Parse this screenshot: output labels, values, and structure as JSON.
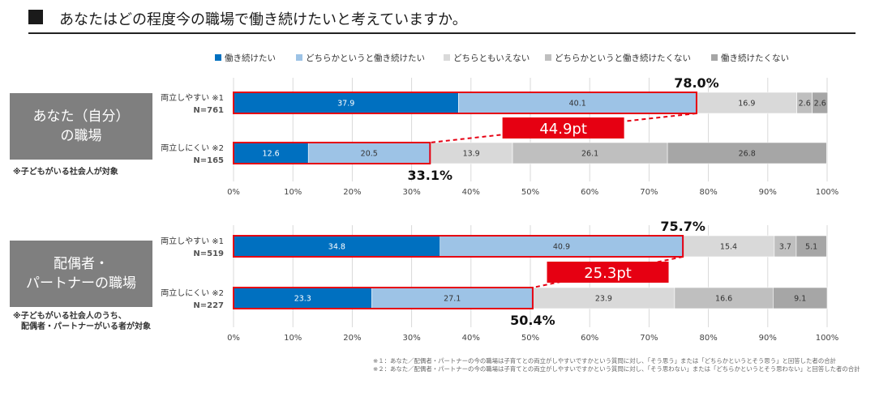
{
  "title": "あなたはどの程度今の職場で働き続けたいと考えていますか。",
  "legend": [
    {
      "label": "働き続けたい",
      "color": "#0070C0"
    },
    {
      "label": "どちらかというと働き続けたい",
      "color": "#9DC3E6"
    },
    {
      "label": "どちらともいえない",
      "color": "#D9D9D9"
    },
    {
      "label": "どちらかというと働き続けたくない",
      "color": "#BFBFBF"
    },
    {
      "label": "働き続けたくない",
      "color": "#A6A6A6"
    }
  ],
  "panels": [
    {
      "side_label": "あなた（自分）\nの職場",
      "note": "※子どもがいる社会人が対象",
      "top_total": "78.0%",
      "bottom_total": "33.1%",
      "diff": "44.9pt"
    },
    {
      "side_label": "配偶者・\nパートナーの職場",
      "note": "※子どもがいる社会人のうち、\n　配偶者・パートナーがいる者が対象",
      "top_total": "75.7%",
      "bottom_total": "50.4%",
      "diff": "25.3pt"
    }
  ],
  "chart_data": [
    {
      "type": "bar",
      "stacked": true,
      "orientation": "horizontal",
      "categories": [
        "両立しやすい ※1\nN=761",
        "両立しにくい ※2\nN=165"
      ],
      "series": [
        {
          "name": "働き続けたい",
          "values": [
            37.9,
            12.6
          ]
        },
        {
          "name": "どちらかというと働き続けたい",
          "values": [
            40.1,
            20.5
          ]
        },
        {
          "name": "どちらともいえない",
          "values": [
            16.9,
            13.9
          ]
        },
        {
          "name": "どちらかというと働き続けたくない",
          "values": [
            2.6,
            26.1
          ]
        },
        {
          "name": "働き続けたくない",
          "values": [
            2.6,
            26.8
          ]
        }
      ],
      "xlim": [
        0,
        100
      ],
      "xticks": [
        "0%",
        "10%",
        "20%",
        "30%",
        "40%",
        "50%",
        "60%",
        "70%",
        "80%",
        "90%",
        "100%"
      ],
      "grid": true
    },
    {
      "type": "bar",
      "stacked": true,
      "orientation": "horizontal",
      "categories": [
        "両立しやすい ※1\nN=519",
        "両立しにくい ※2\nN=227"
      ],
      "series": [
        {
          "name": "働き続けたい",
          "values": [
            34.8,
            23.3
          ]
        },
        {
          "name": "どちらかというと働き続けたい",
          "values": [
            40.9,
            27.1
          ]
        },
        {
          "name": "どちらともいえない",
          "values": [
            15.4,
            23.9
          ]
        },
        {
          "name": "どちらかというと働き続けたくない",
          "values": [
            3.7,
            16.6
          ]
        },
        {
          "name": "働き続けたくない",
          "values": [
            5.1,
            9.1
          ]
        }
      ],
      "xlim": [
        0,
        100
      ],
      "xticks": [
        "0%",
        "10%",
        "20%",
        "30%",
        "40%",
        "50%",
        "60%",
        "70%",
        "80%",
        "90%",
        "100%"
      ],
      "grid": true
    }
  ],
  "footnotes": [
    "※１：あなた／配偶者・パートナーの今の職場は子育てとの両立がしやすいですかという質問に対し、「そう思う」または「どちらかというとそう思う」と回答した者の合計",
    "※２：あなた／配偶者・パートナーの今の職場は子育てとの両立がしやすいですかという質問に対し、「そう思わない」または「どちらかというとそう思わない」と回答した者の合計"
  ]
}
